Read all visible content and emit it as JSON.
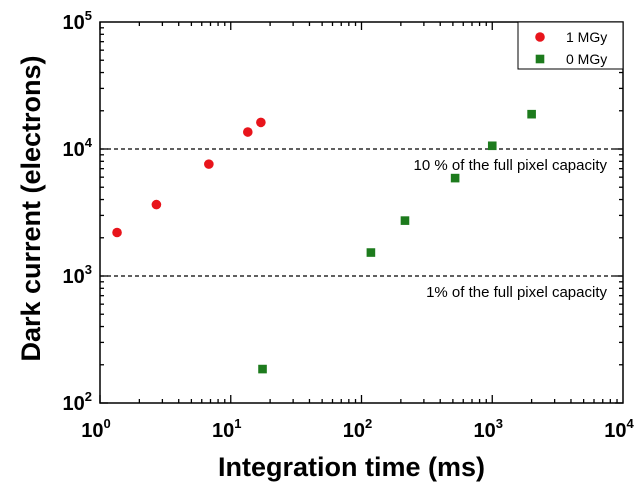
{
  "chart_data": {
    "type": "scatter",
    "xlabel": "Integration time (ms)",
    "ylabel": "Dark current (electrons)",
    "xscale": "log",
    "yscale": "log",
    "xlim": [
      1,
      10000
    ],
    "ylim": [
      100,
      100000
    ],
    "x_ticks": [
      {
        "base": "10",
        "exp": "0",
        "value": 1
      },
      {
        "base": "10",
        "exp": "1",
        "value": 10
      },
      {
        "base": "10",
        "exp": "2",
        "value": 100
      },
      {
        "base": "10",
        "exp": "3",
        "value": 1000
      },
      {
        "base": "10",
        "exp": "4",
        "value": 10000
      }
    ],
    "y_ticks": [
      {
        "base": "10",
        "exp": "2",
        "value": 100
      },
      {
        "base": "10",
        "exp": "3",
        "value": 1000
      },
      {
        "base": "10",
        "exp": "4",
        "value": 10000
      },
      {
        "base": "10",
        "exp": "5",
        "value": 100000
      }
    ],
    "legend_position": "top-right",
    "grid": false,
    "series": [
      {
        "name": "1 MGy",
        "marker": "circle",
        "color": "#e8141b",
        "points": [
          {
            "x": 1.35,
            "y": 2200
          },
          {
            "x": 2.7,
            "y": 3650
          },
          {
            "x": 6.8,
            "y": 7600
          },
          {
            "x": 13.5,
            "y": 13600
          },
          {
            "x": 17,
            "y": 16200
          }
        ]
      },
      {
        "name": "0 MGy",
        "marker": "square",
        "color": "#1d7b1d",
        "points": [
          {
            "x": 17.5,
            "y": 185
          },
          {
            "x": 118,
            "y": 1530
          },
          {
            "x": 215,
            "y": 2730
          },
          {
            "x": 520,
            "y": 5900
          },
          {
            "x": 1000,
            "y": 10600
          },
          {
            "x": 2000,
            "y": 18800
          }
        ]
      }
    ],
    "reference_lines": [
      {
        "y": 10000,
        "label": "10 % of the full pixel capacity"
      },
      {
        "y": 1000,
        "label": "1% of the full pixel capacity"
      }
    ]
  }
}
